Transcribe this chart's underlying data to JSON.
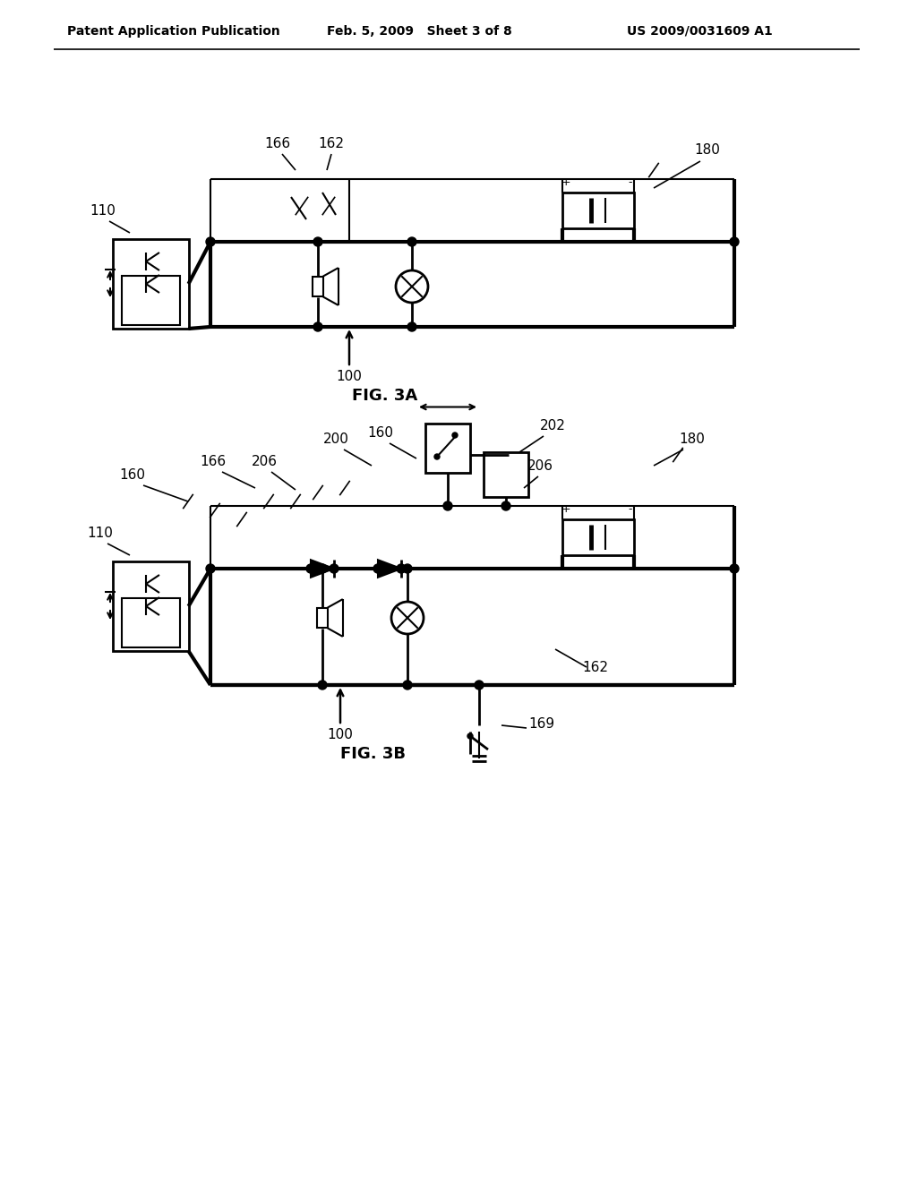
{
  "bg_color": "#ffffff",
  "line_color": "#000000",
  "header_left": "Patent Application Publication",
  "header_center": "Feb. 5, 2009   Sheet 3 of 8",
  "header_right": "US 2009/0031609 A1",
  "fig3a_label": "FIG. 3A",
  "fig3b_label": "FIG. 3B",
  "label_100a": "100",
  "label_100b": "100",
  "label_110a": "110",
  "label_110b": "110",
  "label_160a": "160",
  "label_160b": "160",
  "label_162a": "162",
  "label_162b": "162",
  "label_166a": "166",
  "label_166b": "166",
  "label_180a": "180",
  "label_180b": "180",
  "label_200": "200",
  "label_202": "202",
  "label_206a": "206",
  "label_206b": "206",
  "label_169": "169"
}
